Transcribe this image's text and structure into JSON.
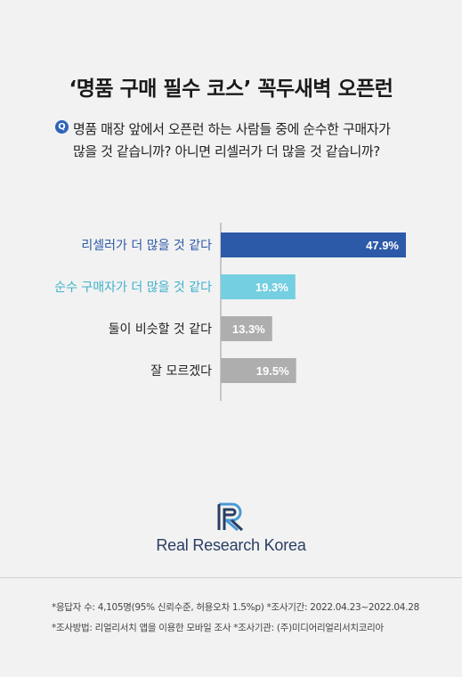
{
  "title": "‘명품 구매 필수 코스’ 꼭두새벽 오픈런",
  "question": {
    "badge": "Q",
    "line1": "명품 매장 앞에서 오픈런 하는 사람들 중에 순수한 구매자가",
    "line2": "많을 것 같습니까? 아니면 리셀러가 더 많을 것 같습니까?"
  },
  "chart_data": {
    "type": "bar",
    "orientation": "horizontal",
    "categories": [
      "리셀러가 더 많을 것 같다",
      "순수 구매자가 더 많을 것 같다",
      "둘이 비슷할 것 같다",
      "잘 모르겠다"
    ],
    "values": [
      47.9,
      19.3,
      13.3,
      19.5
    ],
    "value_labels": [
      "47.9%",
      "19.3%",
      "13.3%",
      "19.5%"
    ],
    "colors": [
      "#2d5aa8",
      "#74cfe0",
      "#aeaeae",
      "#aeaeae"
    ],
    "label_colors": [
      "#2d5aa8",
      "#3db2cc",
      "#222222",
      "#222222"
    ],
    "xlim": [
      0,
      50
    ],
    "grid": false
  },
  "brand": {
    "name": "Real Research Korea",
    "mark_color": "#4a9ad6",
    "mark_color_2": "#2a3e63"
  },
  "notes": {
    "line1": "*응답자 수: 4,105명(95% 신뢰수준, 허용오차 1.5%p)   *조사기간: 2022.04.23~2022.04.28",
    "line2": "*조사방법: 리얼리서치 앱을 이용한 모바일 조사   *조사기관: (주)미디어리얼리서치코리아"
  }
}
